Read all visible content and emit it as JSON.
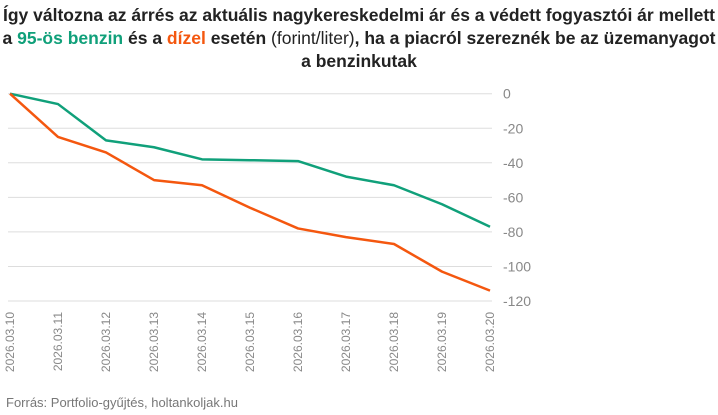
{
  "title": {
    "part1": "Így változna az árrés az aktuális nagykereskedelmi ár és a védett fogyasztói ár mellett a ",
    "benzin": "95-ös benzin",
    "part2": " és a ",
    "dizel": "dízel",
    "part3": " esetén ",
    "unit": "(forint/liter)",
    "part4": ", ha a piacról szereznék be az üzemanyagot a benzinkutak"
  },
  "source": "Forrás: Portfolio-gyűjtés, holtankoljak.hu",
  "chart_data": {
    "type": "line",
    "title": "Így változna az árrés az aktuális nagykereskedelmi ár és a védett fogyasztói ár mellett a 95-ös benzin és a dízel esetén (forint/liter), ha a piacról szereznék be az üzemanyagot a benzinkutak",
    "categories": [
      "2026.03.10",
      "2026.03.11",
      "2026.03.12",
      "2026.03.13",
      "2026.03.14",
      "2026.03.15",
      "2026.03.16",
      "2026.03.17",
      "2026.03.18",
      "2026.03.19",
      "2026.03.20"
    ],
    "series": [
      {
        "name": "95-ös benzin",
        "color": "#10a07a",
        "values": [
          0,
          -6,
          -27,
          -31,
          -38,
          -38.5,
          -39,
          -48,
          -53,
          -64,
          -77
        ]
      },
      {
        "name": "dízel",
        "color": "#f4570f",
        "values": [
          0,
          -25,
          -34,
          -50,
          -53,
          -66,
          -78,
          -83,
          -87,
          -103,
          -114
        ]
      }
    ],
    "yticks": [
      0,
      -20,
      -40,
      -60,
      -80,
      -100,
      -120
    ],
    "ylim": [
      -120,
      0
    ],
    "grid": true
  }
}
